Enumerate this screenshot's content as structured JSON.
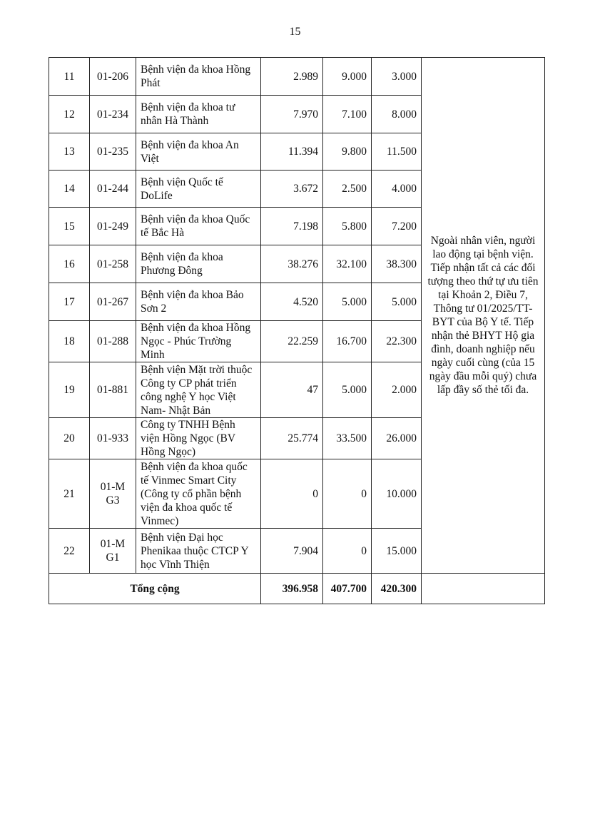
{
  "page_number": "15",
  "rows": [
    {
      "stt": "11",
      "code": "01-206",
      "name": "Bệnh viện đa khoa Hồng Phát",
      "a": "2.989",
      "b": "9.000",
      "c": "3.000"
    },
    {
      "stt": "12",
      "code": "01-234",
      "name": "Bệnh viện đa khoa tư nhân Hà Thành",
      "a": "7.970",
      "b": "7.100",
      "c": "8.000"
    },
    {
      "stt": "13",
      "code": "01-235",
      "name": "Bệnh viện đa khoa An Việt",
      "a": "11.394",
      "b": "9.800",
      "c": "11.500"
    },
    {
      "stt": "14",
      "code": "01-244",
      "name": "Bệnh viện Quốc tế DoLife",
      "a": "3.672",
      "b": "2.500",
      "c": "4.000"
    },
    {
      "stt": "15",
      "code": "01-249",
      "name": "Bệnh viện đa khoa Quốc tế Bắc Hà",
      "a": "7.198",
      "b": "5.800",
      "c": "7.200"
    },
    {
      "stt": "16",
      "code": "01-258",
      "name": "Bệnh viện đa khoa Phương Đông",
      "a": "38.276",
      "b": "32.100",
      "c": "38.300"
    },
    {
      "stt": "17",
      "code": "01-267",
      "name": "Bệnh viện đa khoa Bảo Sơn 2",
      "a": "4.520",
      "b": "5.000",
      "c": "5.000"
    },
    {
      "stt": "18",
      "code": "01-288",
      "name": "Bệnh viện đa khoa Hồng Ngọc - Phúc Trường Minh",
      "a": "22.259",
      "b": "16.700",
      "c": "22.300"
    },
    {
      "stt": "19",
      "code": "01-881",
      "name": "Bệnh viện Mặt trời thuộc Công ty CP phát triển công nghệ Y học Việt Nam- Nhật Bản",
      "a": "47",
      "b": "5.000",
      "c": "2.000"
    },
    {
      "stt": "20",
      "code": "01-933",
      "name": "Công ty TNHH Bệnh viện Hồng Ngọc (BV Hồng Ngọc)",
      "a": "25.774",
      "b": "33.500",
      "c": "26.000"
    },
    {
      "stt": "21",
      "code": "01-MG3",
      "name": "Bệnh viện đa khoa quốc tế Vinmec Smart City (Công ty cổ phần bệnh viện đa khoa quốc tế Vinmec)",
      "a": "0",
      "b": "0",
      "c": "10.000"
    },
    {
      "stt": "22",
      "code": "01-MG1",
      "name": "Bệnh viện Đại học Phenikaa thuộc CTCP Y học Vĩnh Thiện",
      "a": "7.904",
      "b": "0",
      "c": "15.000"
    }
  ],
  "note": "Ngoài nhân viên, người lao động tại bệnh viện. Tiếp nhận tất cả các đối tượng theo thứ tự ưu tiên tại Khoản 2, Điều 7, Thông tư 01/2025/TT-BYT của Bộ Y tế. Tiếp nhận thẻ BHYT Hộ gia đình, doanh nghiệp nếu ngày cuối cùng (của 15 ngày đầu mỗi quý) chưa lấp đầy số thẻ tối đa.",
  "total": {
    "label": "Tổng cộng",
    "a": "396.958",
    "b": "407.700",
    "c": "420.300"
  }
}
